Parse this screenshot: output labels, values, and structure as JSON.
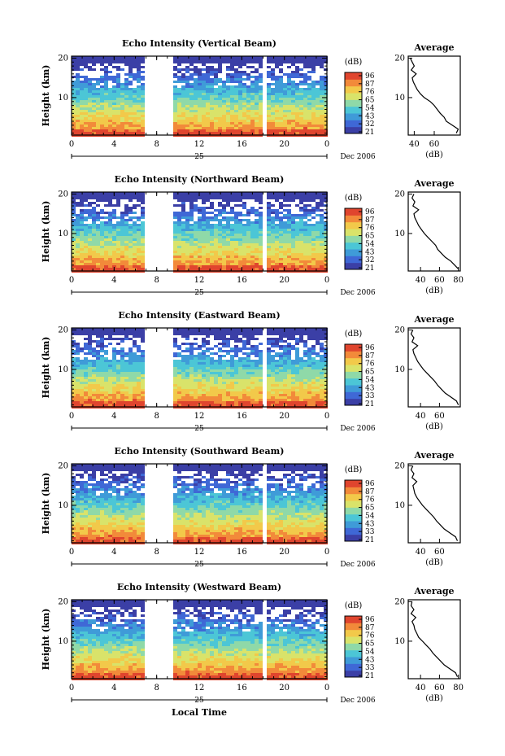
{
  "figure": {
    "xlabel": "Local Time",
    "date_label": "Dec 2006",
    "colorbar_unit": "(dB)",
    "colorbar_ticks": [
      [
        "96",
        "87",
        "76",
        "65",
        "54",
        "43",
        "32",
        "21"
      ],
      [
        "96",
        "87",
        "76",
        "65",
        "54",
        "43",
        "32",
        "21"
      ],
      [
        "96",
        "87",
        "76",
        "65",
        "54",
        "43",
        "33",
        "21"
      ],
      [
        "96",
        "87",
        "76",
        "65",
        "54",
        "43",
        "33",
        "21"
      ],
      [
        "96",
        "87",
        "76",
        "65",
        "54",
        "43",
        "33",
        "21"
      ]
    ],
    "day_label": "25",
    "avg_title": "Average",
    "avg_xlabel": "(dB)",
    "colormap": [
      "#3b3fa6",
      "#3f68d6",
      "#3f9bd8",
      "#4cc6d6",
      "#8fd9a8",
      "#d9e36a",
      "#f2c94a",
      "#f28a3a",
      "#e0452e"
    ]
  },
  "chart_data": [
    {
      "type": "heatmap",
      "title": "Echo Intensity (Vertical Beam)",
      "ylabel": "Height (km)",
      "x_ticks": [
        "0",
        "4",
        "8",
        "12",
        "16",
        "20",
        "0"
      ],
      "y_ticks": [
        "20",
        "10"
      ],
      "xlim": [
        0,
        24
      ],
      "ylim": [
        0.5,
        20.5
      ],
      "data_gaps_hours": [
        [
          6.7,
          9.2
        ],
        [
          17.7,
          18.0
        ]
      ],
      "average": {
        "x_ticks": [
          "40",
          "60"
        ],
        "xlim": [
          34,
          86
        ],
        "y_ticks": [
          "20",
          "10"
        ],
        "ylim": [
          0.5,
          20.5
        ],
        "height_km": [
          1,
          2,
          3,
          4,
          5,
          6,
          7,
          8,
          9,
          10,
          11,
          12,
          13,
          14,
          15,
          16,
          17,
          18,
          19,
          20
        ],
        "db": [
          82,
          84,
          78,
          72,
          70,
          66,
          63,
          60,
          56,
          50,
          46,
          43,
          41,
          39,
          38,
          42,
          37,
          40,
          38,
          36
        ]
      }
    },
    {
      "type": "heatmap",
      "title": "Echo Intensity (Northward Beam)",
      "ylabel": "Height (km)",
      "x_ticks": [
        "0",
        "4",
        "8",
        "12",
        "16",
        "20",
        "0"
      ],
      "y_ticks": [
        "20",
        "10"
      ],
      "xlim": [
        0,
        24
      ],
      "ylim": [
        0.5,
        20.5
      ],
      "data_gaps_hours": [
        [
          6.7,
          9.2
        ],
        [
          17.7,
          18.0
        ]
      ],
      "average": {
        "x_ticks": [
          "40",
          "60",
          "80"
        ],
        "xlim": [
          27,
          82
        ],
        "y_ticks": [
          "20",
          "10"
        ],
        "ylim": [
          0.5,
          20.5
        ],
        "height_km": [
          1,
          2,
          3,
          4,
          5,
          6,
          7,
          8,
          9,
          10,
          11,
          12,
          13,
          14,
          15,
          16,
          17,
          18,
          19,
          20
        ],
        "db": [
          80,
          76,
          72,
          66,
          62,
          58,
          56,
          52,
          48,
          44,
          41,
          38,
          36,
          34,
          33,
          38,
          32,
          34,
          31,
          33
        ]
      }
    },
    {
      "type": "heatmap",
      "title": "Echo Intensity (Eastward Beam)",
      "ylabel": "Height (km)",
      "x_ticks": [
        "0",
        "4",
        "8",
        "12",
        "16",
        "20",
        "0"
      ],
      "y_ticks": [
        "20",
        "10"
      ],
      "xlim": [
        0,
        24
      ],
      "ylim": [
        0.5,
        20.5
      ],
      "data_gaps_hours": [
        [
          6.7,
          9.2
        ],
        [
          17.7,
          18.0
        ]
      ],
      "average": {
        "x_ticks": [
          "40",
          "60"
        ],
        "xlim": [
          27,
          82
        ],
        "y_ticks": [
          "20",
          "10"
        ],
        "ylim": [
          0.5,
          20.5
        ],
        "height_km": [
          1,
          2,
          3,
          4,
          5,
          6,
          7,
          8,
          9,
          10,
          11,
          12,
          13,
          14,
          15,
          16,
          17,
          18,
          19,
          20
        ],
        "db": [
          80,
          78,
          72,
          66,
          62,
          58,
          55,
          51,
          47,
          43,
          40,
          37,
          35,
          33,
          32,
          37,
          31,
          33,
          30,
          32
        ]
      }
    },
    {
      "type": "heatmap",
      "title": "Echo Intensity (Southward Beam)",
      "ylabel": "Height (km)",
      "x_ticks": [
        "0",
        "4",
        "8",
        "12",
        "16",
        "20",
        "0"
      ],
      "y_ticks": [
        "20",
        "10"
      ],
      "xlim": [
        0,
        24
      ],
      "ylim": [
        0.5,
        20.5
      ],
      "data_gaps_hours": [
        [
          6.7,
          9.2
        ],
        [
          17.7,
          18.0
        ]
      ],
      "average": {
        "x_ticks": [
          "40",
          "60"
        ],
        "xlim": [
          27,
          82
        ],
        "y_ticks": [
          "20",
          "10"
        ],
        "ylim": [
          0.5,
          20.5
        ],
        "height_km": [
          1,
          2,
          3,
          4,
          5,
          6,
          7,
          8,
          9,
          10,
          11,
          12,
          13,
          14,
          15,
          16,
          17,
          18,
          19,
          20
        ],
        "db": [
          79,
          77,
          71,
          65,
          61,
          57,
          54,
          50,
          46,
          42,
          39,
          36,
          34,
          33,
          32,
          36,
          31,
          33,
          30,
          32
        ]
      }
    },
    {
      "type": "heatmap",
      "title": "Echo Intensity (Westward Beam)",
      "ylabel": "Height (km)",
      "x_ticks": [
        "0",
        "4",
        "8",
        "12",
        "16",
        "20",
        "0"
      ],
      "y_ticks": [
        "20",
        "10"
      ],
      "xlim": [
        0,
        24
      ],
      "ylim": [
        0.5,
        20.5
      ],
      "data_gaps_hours": [
        [
          6.7,
          9.2
        ],
        [
          17.7,
          18.0
        ]
      ],
      "average": {
        "x_ticks": [
          "40",
          "60",
          "80"
        ],
        "xlim": [
          27,
          82
        ],
        "y_ticks": [
          "20",
          "10"
        ],
        "ylim": [
          0.5,
          20.5
        ],
        "height_km": [
          1,
          2,
          3,
          4,
          5,
          6,
          7,
          8,
          9,
          10,
          11,
          12,
          13,
          14,
          15,
          16,
          17,
          18,
          19,
          20
        ],
        "db": [
          79,
          77,
          71,
          65,
          61,
          57,
          53,
          50,
          46,
          42,
          38,
          36,
          34,
          33,
          31,
          35,
          30,
          33,
          30,
          31
        ]
      }
    }
  ]
}
